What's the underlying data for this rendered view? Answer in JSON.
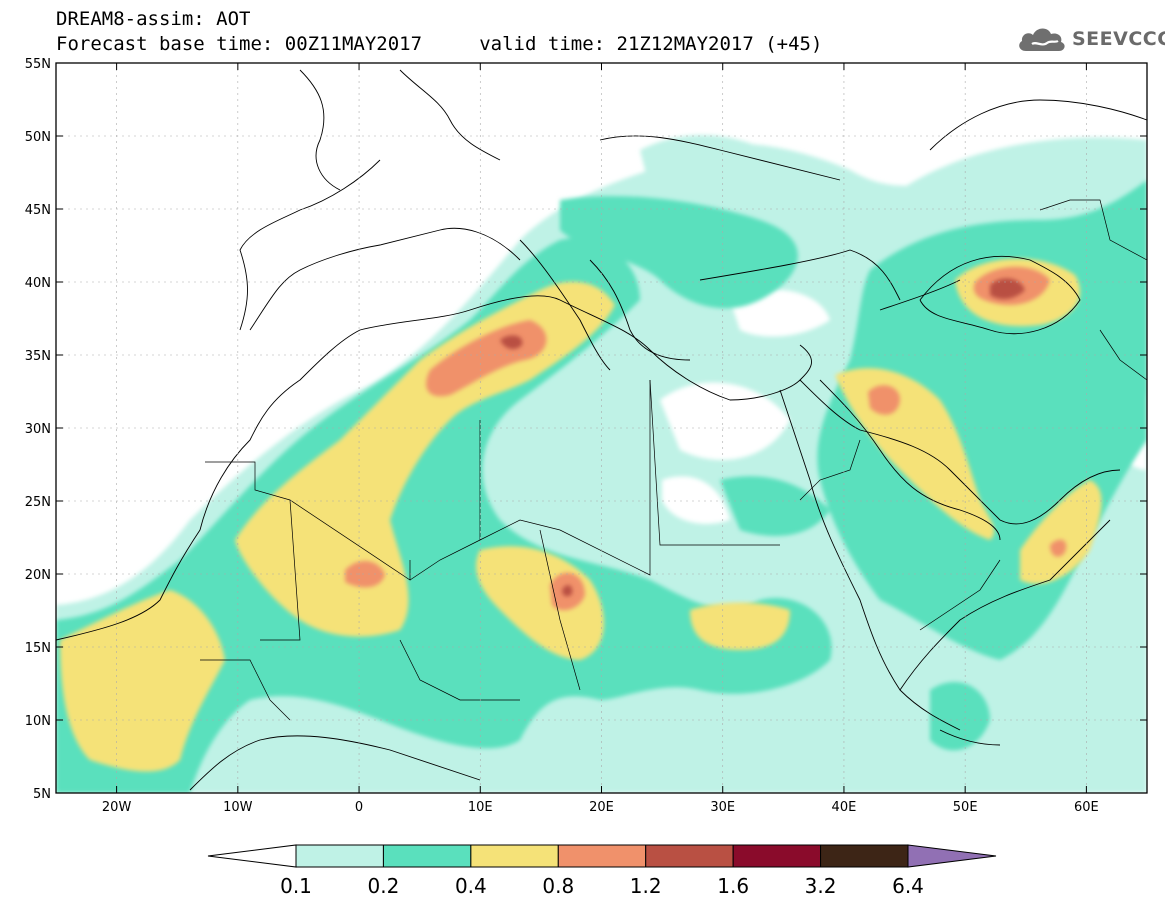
{
  "title": {
    "line1": "DREAM8-assim: AOT",
    "line2": "Forecast base time: 00Z11MAY2017     valid time: 21Z12MAY2017 (+45)"
  },
  "logo": {
    "text": "SEEVCCC",
    "icon": "cloud-icon"
  },
  "map": {
    "lon_range": [
      -25,
      65
    ],
    "lat_range": [
      5,
      55
    ],
    "lat_ticks": [
      {
        "value": 55,
        "label": "55N"
      },
      {
        "value": 50,
        "label": "50N"
      },
      {
        "value": 45,
        "label": "45N"
      },
      {
        "value": 40,
        "label": "40N"
      },
      {
        "value": 35,
        "label": "35N"
      },
      {
        "value": 30,
        "label": "30N"
      },
      {
        "value": 25,
        "label": "25N"
      },
      {
        "value": 20,
        "label": "20N"
      },
      {
        "value": 15,
        "label": "15N"
      },
      {
        "value": 10,
        "label": "10N"
      },
      {
        "value": 5,
        "label": "5N"
      }
    ],
    "lon_ticks": [
      {
        "value": -20,
        "label": "20W"
      },
      {
        "value": -10,
        "label": "10W"
      },
      {
        "value": 0,
        "label": "0"
      },
      {
        "value": 10,
        "label": "10E"
      },
      {
        "value": 20,
        "label": "20E"
      },
      {
        "value": 30,
        "label": "30E"
      },
      {
        "value": 40,
        "label": "40E"
      },
      {
        "value": 50,
        "label": "50E"
      },
      {
        "value": 60,
        "label": "60E"
      }
    ],
    "grid": true
  },
  "colorbar": {
    "levels": [
      "0.1",
      "0.2",
      "0.4",
      "0.8",
      "1.2",
      "1.6",
      "3.2",
      "6.4"
    ],
    "colors": [
      "#ffffff",
      "#bff2e6",
      "#5ae0bd",
      "#f5e278",
      "#f0916b",
      "#b95043",
      "#8a0b2b",
      "#3d2516",
      "#9170b4"
    ]
  }
}
